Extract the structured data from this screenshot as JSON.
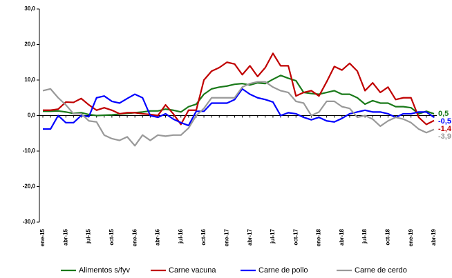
{
  "chart_data": {
    "type": "line",
    "categories": [
      "ene-15",
      null,
      null,
      "abr-15",
      null,
      null,
      "jul-15",
      null,
      null,
      "oct-15",
      null,
      null,
      "ene-16",
      null,
      null,
      "abr-16",
      null,
      null,
      "jul-16",
      null,
      null,
      "oct-16",
      null,
      null,
      "ene-17",
      null,
      null,
      "abr-17",
      null,
      null,
      "jul-17",
      null,
      null,
      "oct-17",
      null,
      null,
      "ene-18",
      null,
      null,
      "abr-18",
      null,
      null,
      "jul-18",
      null,
      null,
      "oct-18",
      null,
      null,
      "ene-19",
      null,
      null,
      "abr-19"
    ],
    "ylim": [
      -30,
      30
    ],
    "yticks": [
      {
        "value": -30,
        "label": "-30,0"
      },
      {
        "value": -20,
        "label": "-20,0"
      },
      {
        "value": -10,
        "label": "-10,0"
      },
      {
        "value": 0,
        "label": "0,0"
      },
      {
        "value": 10,
        "label": "10,0"
      },
      {
        "value": 20,
        "label": "20,0"
      },
      {
        "value": 30,
        "label": "30,0"
      }
    ],
    "grid": false,
    "legend": "bottom",
    "series": [
      {
        "name": "Alimentos s/fyv",
        "color": "#1a7a1a",
        "values": [
          1.2,
          1.2,
          1.3,
          1.0,
          0.6,
          0.8,
          0.3,
          0.0,
          0.1,
          0.2,
          0.4,
          0.6,
          0.8,
          1.0,
          1.3,
          1.3,
          1.8,
          1.5,
          1.0,
          2.5,
          3.2,
          6.0,
          7.5,
          8.0,
          8.3,
          8.8,
          9.0,
          8.6,
          9.2,
          9.0,
          10.2,
          11.3,
          10.5,
          9.8,
          6.5,
          6.2,
          6.0,
          6.5,
          7.0,
          6.0,
          6.0,
          5.0,
          3.2,
          4.2,
          3.5,
          3.5,
          2.5,
          2.5,
          2.2,
          0.5,
          1.2,
          0.5
        ],
        "value_labels": [
          null,
          null,
          null,
          null,
          null,
          null,
          null,
          null,
          null,
          null,
          null,
          null,
          null,
          null,
          null,
          null,
          null,
          null,
          null,
          null,
          null,
          null,
          null,
          null,
          null,
          null,
          null,
          null,
          null,
          null,
          null,
          null,
          null,
          null,
          null,
          null,
          null,
          null,
          null,
          null,
          null,
          null,
          null,
          null,
          null,
          null,
          null,
          null,
          null,
          null,
          null,
          "0,5"
        ]
      },
      {
        "name": "Carne vacuna",
        "color": "#c00000",
        "values": [
          1.5,
          1.5,
          1.8,
          3.8,
          3.7,
          4.8,
          3.0,
          1.5,
          2.2,
          1.5,
          0.5,
          0.8,
          0.8,
          0.5,
          0.3,
          0.0,
          3.0,
          0.5,
          -2.5,
          1.5,
          1.5,
          10.0,
          12.5,
          13.5,
          15.0,
          14.5,
          11.5,
          14.0,
          11.0,
          13.5,
          17.5,
          14.0,
          14.0,
          5.5,
          6.5,
          7.0,
          5.5,
          9.5,
          13.8,
          12.8,
          14.7,
          12.5,
          7.0,
          9.2,
          6.5,
          8.0,
          4.5,
          5.0,
          5.0,
          -0.5,
          -2.5,
          -1.4
        ],
        "value_labels": [
          null,
          null,
          null,
          null,
          null,
          null,
          null,
          null,
          null,
          null,
          null,
          null,
          null,
          null,
          null,
          null,
          null,
          null,
          null,
          null,
          null,
          null,
          null,
          null,
          null,
          null,
          null,
          null,
          null,
          null,
          null,
          null,
          null,
          null,
          null,
          null,
          null,
          null,
          null,
          null,
          null,
          null,
          null,
          null,
          null,
          null,
          null,
          null,
          null,
          null,
          null,
          "-1,4"
        ]
      },
      {
        "name": "Carne de pollo",
        "color": "#0000ff",
        "values": [
          -3.8,
          -3.8,
          0.0,
          -2.0,
          -2.0,
          0.0,
          -0.3,
          5.0,
          5.5,
          4.0,
          3.5,
          4.8,
          6.0,
          5.0,
          0.0,
          -0.5,
          0.5,
          -1.0,
          -2.0,
          -2.8,
          1.2,
          1.2,
          3.5,
          3.5,
          3.5,
          4.5,
          7.5,
          6.0,
          5.0,
          4.5,
          3.8,
          0.0,
          0.8,
          0.5,
          -0.5,
          -1.2,
          -0.5,
          -1.5,
          -1.8,
          -0.8,
          0.5,
          1.0,
          1.5,
          1.0,
          1.0,
          0.5,
          -0.5,
          0.5,
          0.5,
          1.0,
          1.0,
          -0.5
        ],
        "value_labels": [
          null,
          null,
          null,
          null,
          null,
          null,
          null,
          null,
          null,
          null,
          null,
          null,
          null,
          null,
          null,
          null,
          null,
          null,
          null,
          null,
          null,
          null,
          null,
          null,
          null,
          null,
          null,
          null,
          null,
          null,
          null,
          null,
          null,
          null,
          null,
          null,
          null,
          null,
          null,
          null,
          null,
          null,
          null,
          null,
          null,
          null,
          null,
          null,
          null,
          null,
          null,
          "-0,5"
        ]
      },
      {
        "name": "Carne de cerdo",
        "color": "#999999",
        "values": [
          7.0,
          7.5,
          5.0,
          3.0,
          0.5,
          0.5,
          -1.5,
          -1.8,
          -5.5,
          -6.5,
          -7.0,
          -6.0,
          -8.5,
          -5.5,
          -7.0,
          -5.5,
          -5.8,
          -5.5,
          -5.5,
          -3.5,
          0.0,
          2.0,
          5.0,
          5.0,
          5.0,
          5.0,
          8.0,
          9.0,
          9.5,
          9.5,
          8.0,
          7.0,
          6.5,
          4.0,
          3.5,
          0.0,
          1.0,
          4.0,
          4.0,
          2.5,
          2.0,
          -0.5,
          0.0,
          -1.0,
          -3.0,
          -1.5,
          -0.5,
          -1.0,
          -2.0,
          -3.8,
          -4.8,
          -3.9
        ],
        "value_labels": [
          null,
          null,
          null,
          null,
          null,
          null,
          null,
          null,
          null,
          null,
          null,
          null,
          null,
          null,
          null,
          null,
          null,
          null,
          null,
          null,
          null,
          null,
          null,
          null,
          null,
          null,
          null,
          null,
          null,
          null,
          null,
          null,
          null,
          null,
          null,
          null,
          null,
          null,
          null,
          null,
          null,
          null,
          null,
          null,
          null,
          null,
          null,
          null,
          null,
          null,
          null,
          "-3,9"
        ]
      }
    ]
  }
}
